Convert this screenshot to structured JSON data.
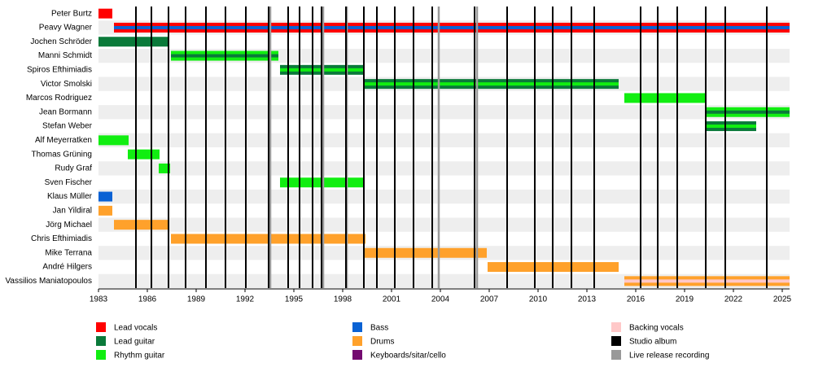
{
  "chart_data": {
    "type": "timeline",
    "xlim": [
      1983,
      2025.45
    ],
    "xticks": [
      1983,
      1986,
      1989,
      1992,
      1995,
      1998,
      2001,
      2004,
      2007,
      2010,
      2013,
      2016,
      2019,
      2022,
      2025
    ],
    "roles": [
      {
        "name": "Lead vocals",
        "color": "#ff0000"
      },
      {
        "name": "Lead guitar",
        "color": "#0a7a3a"
      },
      {
        "name": "Rhythm guitar",
        "color": "#11ee11"
      },
      {
        "name": "Bass",
        "color": "#0a62d4"
      },
      {
        "name": "Drums",
        "color": "#ffa12b"
      },
      {
        "name": "Keyboards/sitar/cello",
        "color": "#740a70"
      },
      {
        "name": "Backing vocals",
        "color": "#ffc8c8"
      },
      {
        "name": "Studio album",
        "color": "#000000"
      },
      {
        "name": "Live release recording",
        "color": "#999999"
      }
    ],
    "members": [
      {
        "name": "Peter Burtz",
        "spans": [
          {
            "role": "Lead vocals",
            "start": 1983,
            "end": 1983.85
          }
        ]
      },
      {
        "name": "Peavy Wagner",
        "spans": [
          {
            "role": "Lead vocals",
            "stripe": "Bass",
            "start": 1983.95,
            "end": 2025.45
          }
        ]
      },
      {
        "name": "Jochen Schröder",
        "spans": [
          {
            "role": "Lead guitar",
            "start": 1983,
            "end": 1987.35
          }
        ]
      },
      {
        "name": "Manni Schmidt",
        "spans": [
          {
            "role": "Rhythm guitar",
            "stripe": "Lead guitar",
            "start": 1987.45,
            "end": 1994.05
          }
        ]
      },
      {
        "name": "Spiros Efthimiadis",
        "spans": [
          {
            "role": "Lead guitar",
            "stripe": "Rhythm guitar",
            "start": 1994.15,
            "end": 1999.35
          }
        ]
      },
      {
        "name": "Victor Smolski",
        "spans": [
          {
            "role": "Lead guitar",
            "stripe": "Rhythm guitar",
            "start": 1999.3,
            "end": 2014.95
          }
        ]
      },
      {
        "name": "Marcos Rodriguez",
        "spans": [
          {
            "role": "Rhythm guitar",
            "start": 2015.3,
            "end": 2020.3
          }
        ]
      },
      {
        "name": "Jean Bormann",
        "spans": [
          {
            "role": "Rhythm guitar",
            "stripe": "Lead guitar",
            "start": 2020.25,
            "end": 2025.45
          }
        ]
      },
      {
        "name": "Stefan Weber",
        "spans": [
          {
            "role": "Lead guitar",
            "stripe": "Rhythm guitar",
            "start": 2020.25,
            "end": 2023.4
          }
        ]
      },
      {
        "name": "Alf Meyerratken",
        "spans": [
          {
            "role": "Rhythm guitar",
            "start": 1983,
            "end": 1984.85
          }
        ]
      },
      {
        "name": "Thomas Grüning",
        "spans": [
          {
            "role": "Rhythm guitar",
            "start": 1984.8,
            "end": 1986.75
          }
        ]
      },
      {
        "name": "Rudy Graf",
        "spans": [
          {
            "role": "Rhythm guitar",
            "start": 1986.7,
            "end": 1987.4
          }
        ]
      },
      {
        "name": "Sven Fischer",
        "spans": [
          {
            "role": "Rhythm guitar",
            "start": 1994.15,
            "end": 1999.35
          }
        ]
      },
      {
        "name": "Klaus Müller",
        "spans": [
          {
            "role": "Bass",
            "start": 1983,
            "end": 1983.85
          }
        ]
      },
      {
        "name": "Jan Yildiral",
        "spans": [
          {
            "role": "Drums",
            "start": 1983,
            "end": 1983.85
          }
        ]
      },
      {
        "name": "Jörg Michael",
        "spans": [
          {
            "role": "Drums",
            "start": 1983.95,
            "end": 1987.35
          }
        ]
      },
      {
        "name": "Chris Efthimiadis",
        "spans": [
          {
            "role": "Drums",
            "start": 1987.45,
            "end": 1999.4
          }
        ]
      },
      {
        "name": "Mike Terrana",
        "spans": [
          {
            "role": "Drums",
            "start": 1999.3,
            "end": 2006.85
          }
        ]
      },
      {
        "name": "André Hilgers",
        "spans": [
          {
            "role": "Drums",
            "start": 2006.9,
            "end": 2014.95
          }
        ]
      },
      {
        "name": "Vassilios Maniatopoulos",
        "spans": [
          {
            "role": "Drums",
            "stripe": "Backing vocals",
            "start": 2015.3,
            "end": 2025.45
          }
        ]
      }
    ],
    "studio_albums": [
      1985.3,
      1986.25,
      1987.3,
      1988.35,
      1989.6,
      1990.8,
      1992.05,
      1993.45,
      1994.65,
      1995.35,
      1996.15,
      1996.7,
      1998.2,
      1999.3,
      2000.1,
      2001.2,
      2002.35,
      2003.5,
      2006.1,
      2008.1,
      2009.8,
      2010.9,
      2012.05,
      2013.45,
      2016.3,
      2017.35,
      2018.55,
      2020.3,
      2021.5,
      2024.05
    ],
    "live_releases": [
      1993.55,
      1996.8,
      1998.25,
      2003.9,
      2006.25
    ]
  }
}
